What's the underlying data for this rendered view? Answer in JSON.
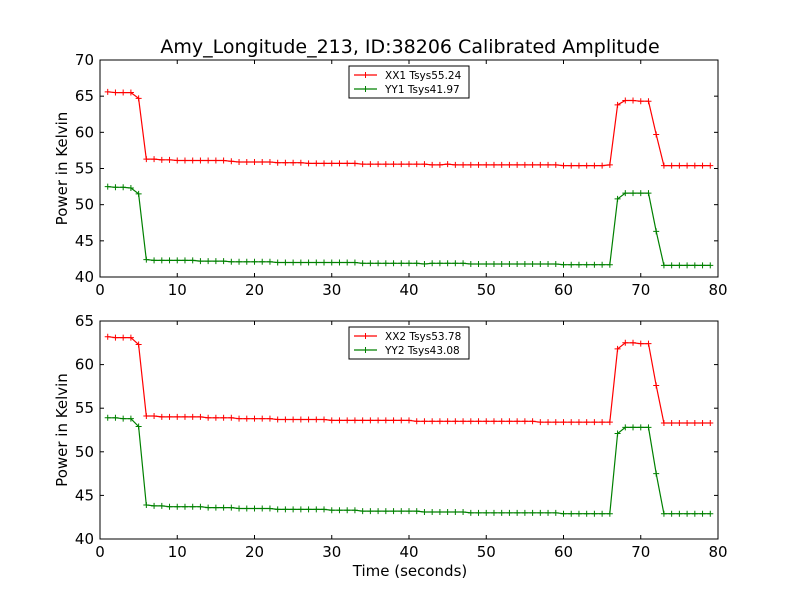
{
  "title": "Amy_Longitude_213, ID:38206 Calibrated Amplitude",
  "xlabel": "Time (seconds)",
  "chart_data": [
    {
      "type": "line",
      "xlim": [
        0,
        80
      ],
      "ylim": [
        40,
        70
      ],
      "xticks": [
        0,
        10,
        20,
        30,
        40,
        50,
        60,
        70,
        80
      ],
      "yticks": [
        40,
        45,
        50,
        55,
        60,
        65,
        70
      ],
      "ylabel": "Power in Kelvin",
      "legend_position": "top-center",
      "series": [
        {
          "name": "XX1 Tsys55.24",
          "color": "#ff0000",
          "x": [
            1,
            2,
            3,
            4,
            5,
            6,
            7,
            8,
            9,
            10,
            11,
            12,
            13,
            14,
            15,
            16,
            17,
            18,
            19,
            20,
            21,
            22,
            23,
            24,
            25,
            26,
            27,
            28,
            29,
            30,
            31,
            32,
            33,
            34,
            35,
            36,
            37,
            38,
            39,
            40,
            41,
            42,
            43,
            44,
            45,
            46,
            47,
            48,
            49,
            50,
            51,
            52,
            53,
            54,
            55,
            56,
            57,
            58,
            59,
            60,
            61,
            62,
            63,
            64,
            65,
            66,
            67,
            68,
            69,
            70,
            71,
            72,
            73,
            74,
            75,
            76,
            77,
            78,
            79
          ],
          "y": [
            65.6,
            65.5,
            65.5,
            65.5,
            64.7,
            56.3,
            56.3,
            56.2,
            56.2,
            56.1,
            56.1,
            56.1,
            56.1,
            56.1,
            56.1,
            56.1,
            56.0,
            55.9,
            55.9,
            55.9,
            55.9,
            55.9,
            55.8,
            55.8,
            55.8,
            55.8,
            55.7,
            55.7,
            55.7,
            55.7,
            55.7,
            55.7,
            55.7,
            55.6,
            55.6,
            55.6,
            55.6,
            55.6,
            55.6,
            55.6,
            55.6,
            55.6,
            55.5,
            55.5,
            55.6,
            55.5,
            55.5,
            55.5,
            55.5,
            55.5,
            55.5,
            55.5,
            55.5,
            55.5,
            55.5,
            55.5,
            55.5,
            55.5,
            55.5,
            55.4,
            55.4,
            55.4,
            55.4,
            55.4,
            55.4,
            55.5,
            63.8,
            64.4,
            64.4,
            64.3,
            64.3,
            59.7,
            55.4,
            55.4,
            55.4,
            55.4,
            55.4,
            55.4,
            55.4
          ]
        },
        {
          "name": "YY1 Tsys41.97",
          "color": "#008000",
          "x": [
            1,
            2,
            3,
            4,
            5,
            6,
            7,
            8,
            9,
            10,
            11,
            12,
            13,
            14,
            15,
            16,
            17,
            18,
            19,
            20,
            21,
            22,
            23,
            24,
            25,
            26,
            27,
            28,
            29,
            30,
            31,
            32,
            33,
            34,
            35,
            36,
            37,
            38,
            39,
            40,
            41,
            42,
            43,
            44,
            45,
            46,
            47,
            48,
            49,
            50,
            51,
            52,
            53,
            54,
            55,
            56,
            57,
            58,
            59,
            60,
            61,
            62,
            63,
            64,
            65,
            66,
            67,
            68,
            69,
            70,
            71,
            72,
            73,
            74,
            75,
            76,
            77,
            78,
            79
          ],
          "y": [
            52.5,
            52.4,
            52.4,
            52.3,
            51.5,
            42.4,
            42.3,
            42.3,
            42.3,
            42.3,
            42.3,
            42.3,
            42.2,
            42.2,
            42.2,
            42.2,
            42.1,
            42.1,
            42.1,
            42.1,
            42.1,
            42.1,
            42.0,
            42.0,
            42.0,
            42.0,
            42.0,
            42.0,
            42.0,
            42.0,
            42.0,
            42.0,
            42.0,
            41.9,
            41.9,
            41.9,
            41.9,
            41.9,
            41.9,
            41.9,
            41.9,
            41.8,
            41.9,
            41.9,
            41.9,
            41.9,
            41.9,
            41.8,
            41.8,
            41.8,
            41.8,
            41.8,
            41.8,
            41.8,
            41.8,
            41.8,
            41.8,
            41.8,
            41.8,
            41.7,
            41.7,
            41.7,
            41.7,
            41.7,
            41.7,
            41.7,
            50.8,
            51.6,
            51.6,
            51.6,
            51.6,
            46.3,
            41.6,
            41.6,
            41.6,
            41.6,
            41.6,
            41.6,
            41.6
          ]
        }
      ]
    },
    {
      "type": "line",
      "xlim": [
        0,
        80
      ],
      "ylim": [
        40,
        65
      ],
      "xticks": [
        0,
        10,
        20,
        30,
        40,
        50,
        60,
        70,
        80
      ],
      "yticks": [
        40,
        45,
        50,
        55,
        60,
        65
      ],
      "ylabel": "Power in Kelvin",
      "legend_position": "top-center",
      "series": [
        {
          "name": "XX2 Tsys53.78",
          "color": "#ff0000",
          "x": [
            1,
            2,
            3,
            4,
            5,
            6,
            7,
            8,
            9,
            10,
            11,
            12,
            13,
            14,
            15,
            16,
            17,
            18,
            19,
            20,
            21,
            22,
            23,
            24,
            25,
            26,
            27,
            28,
            29,
            30,
            31,
            32,
            33,
            34,
            35,
            36,
            37,
            38,
            39,
            40,
            41,
            42,
            43,
            44,
            45,
            46,
            47,
            48,
            49,
            50,
            51,
            52,
            53,
            54,
            55,
            56,
            57,
            58,
            59,
            60,
            61,
            62,
            63,
            64,
            65,
            66,
            67,
            68,
            69,
            70,
            71,
            72,
            73,
            74,
            75,
            76,
            77,
            78,
            79
          ],
          "y": [
            63.2,
            63.1,
            63.1,
            63.1,
            62.3,
            54.1,
            54.1,
            54.0,
            54.0,
            54.0,
            54.0,
            54.0,
            54.0,
            53.9,
            53.9,
            53.9,
            53.9,
            53.8,
            53.8,
            53.8,
            53.8,
            53.8,
            53.7,
            53.7,
            53.7,
            53.7,
            53.7,
            53.7,
            53.7,
            53.6,
            53.6,
            53.6,
            53.6,
            53.6,
            53.6,
            53.6,
            53.6,
            53.6,
            53.6,
            53.6,
            53.5,
            53.5,
            53.5,
            53.5,
            53.5,
            53.5,
            53.5,
            53.5,
            53.5,
            53.5,
            53.5,
            53.5,
            53.5,
            53.5,
            53.5,
            53.5,
            53.4,
            53.4,
            53.4,
            53.4,
            53.4,
            53.4,
            53.4,
            53.4,
            53.4,
            53.4,
            61.8,
            62.5,
            62.5,
            62.4,
            62.4,
            57.6,
            53.3,
            53.3,
            53.3,
            53.3,
            53.3,
            53.3,
            53.3
          ]
        },
        {
          "name": "YY2 Tsys43.08",
          "color": "#008000",
          "x": [
            1,
            2,
            3,
            4,
            5,
            6,
            7,
            8,
            9,
            10,
            11,
            12,
            13,
            14,
            15,
            16,
            17,
            18,
            19,
            20,
            21,
            22,
            23,
            24,
            25,
            26,
            27,
            28,
            29,
            30,
            31,
            32,
            33,
            34,
            35,
            36,
            37,
            38,
            39,
            40,
            41,
            42,
            43,
            44,
            45,
            46,
            47,
            48,
            49,
            50,
            51,
            52,
            53,
            54,
            55,
            56,
            57,
            58,
            59,
            60,
            61,
            62,
            63,
            64,
            65,
            66,
            67,
            68,
            69,
            70,
            71,
            72,
            73,
            74,
            75,
            76,
            77,
            78,
            79
          ],
          "y": [
            53.9,
            53.9,
            53.8,
            53.8,
            52.9,
            43.9,
            43.8,
            43.8,
            43.7,
            43.7,
            43.7,
            43.7,
            43.7,
            43.6,
            43.6,
            43.6,
            43.6,
            43.5,
            43.5,
            43.5,
            43.5,
            43.5,
            43.4,
            43.4,
            43.4,
            43.4,
            43.4,
            43.4,
            43.4,
            43.3,
            43.3,
            43.3,
            43.3,
            43.2,
            43.2,
            43.2,
            43.2,
            43.2,
            43.2,
            43.2,
            43.2,
            43.1,
            43.1,
            43.1,
            43.1,
            43.1,
            43.1,
            43.0,
            43.0,
            43.0,
            43.0,
            43.0,
            43.0,
            43.0,
            43.0,
            43.0,
            43.0,
            43.0,
            43.0,
            42.9,
            42.9,
            42.9,
            42.9,
            42.9,
            42.9,
            42.9,
            52.1,
            52.8,
            52.8,
            52.8,
            52.8,
            47.5,
            42.9,
            42.9,
            42.9,
            42.9,
            42.9,
            42.9,
            42.9
          ]
        }
      ]
    }
  ]
}
